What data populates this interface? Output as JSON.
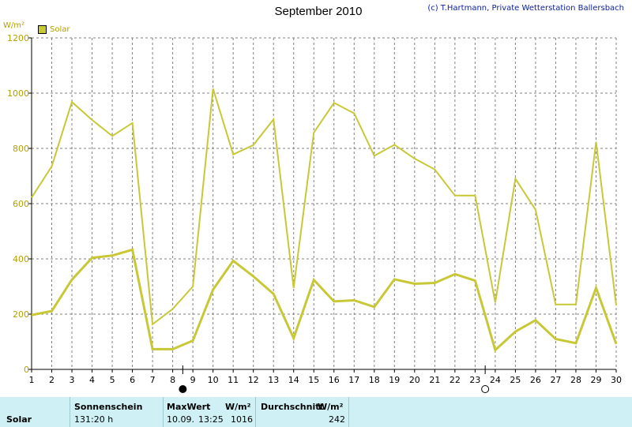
{
  "title": "September 2010",
  "credit": "(c) T.Hartmann, Private Wetterstation Ballersbach",
  "unit": "W/m²",
  "legend_label": "Solar",
  "table": {
    "row_label": "Solar",
    "sun_header": "Sonnenschein",
    "sun_value": "131:20 h",
    "max_header": "MaxWert",
    "max_unit": "W/m²",
    "max_date": "10.09.",
    "max_time": "13:25",
    "max_value": "1016",
    "avg_header": "Durchschnitt",
    "avg_unit": "W/m²",
    "avg_value": "242"
  },
  "colors": {
    "series": "#c8c837",
    "grid": "#808080",
    "table_bg": "#cff0f4"
  },
  "chart_data": {
    "type": "line",
    "ylim": [
      0,
      1200
    ],
    "yticks": [
      0,
      200,
      400,
      600,
      800,
      1000,
      1200
    ],
    "x": [
      1,
      2,
      3,
      4,
      5,
      6,
      7,
      8,
      9,
      10,
      11,
      12,
      13,
      14,
      15,
      16,
      17,
      18,
      19,
      20,
      21,
      22,
      23,
      24,
      25,
      26,
      27,
      28,
      29,
      30
    ],
    "grid": true,
    "legend": "top-left",
    "series": [
      {
        "name": "Solar",
        "values": [
          622,
          735,
          968,
          903,
          845,
          892,
          163,
          219,
          300,
          1016,
          778,
          812,
          905,
          295,
          857,
          965,
          927,
          773,
          813,
          763,
          724,
          629,
          629,
          242,
          690,
          578,
          235,
          235,
          823,
          232
        ]
      },
      {
        "name": "",
        "values": [
          197,
          211,
          325,
          404,
          412,
          433,
          73,
          73,
          104,
          289,
          393,
          337,
          273,
          113,
          324,
          246,
          250,
          226,
          326,
          310,
          313,
          345,
          321,
          70,
          137,
          178,
          110,
          95,
          295,
          92
        ]
      }
    ],
    "moon_phases": [
      {
        "day": 8.5,
        "phase": "new"
      },
      {
        "day": 23.5,
        "phase": "full"
      }
    ]
  }
}
